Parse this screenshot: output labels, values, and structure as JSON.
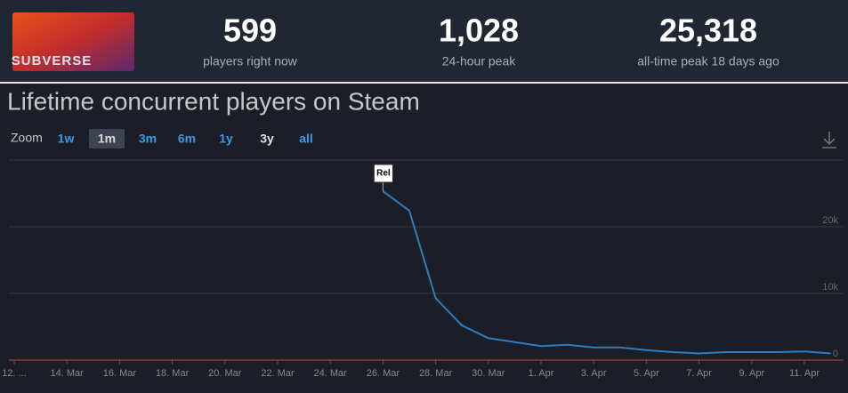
{
  "header": {
    "logo_text": "SUBVERSE",
    "stats": [
      {
        "value": "599",
        "label": "players right now"
      },
      {
        "value": "1,028",
        "label": "24-hour peak"
      },
      {
        "value": "25,318",
        "label": "all-time peak 18 days ago"
      }
    ]
  },
  "chart_data": {
    "type": "line",
    "title": "Lifetime concurrent players on Steam",
    "zoom": {
      "label": "Zoom",
      "options": [
        "1w",
        "1m",
        "3m",
        "6m",
        "1y",
        "3y",
        "all"
      ],
      "active": "1m"
    },
    "categories": [
      "12. ...",
      null,
      "14. Mar",
      null,
      "16. Mar",
      null,
      "18. Mar",
      null,
      "20. Mar",
      null,
      "22. Mar",
      null,
      "24. Mar",
      null,
      "26. Mar",
      null,
      "28. Mar",
      null,
      "30. Mar",
      null,
      "1. Apr",
      null,
      "3. Apr",
      null,
      "5. Apr",
      null,
      "7. Apr",
      null,
      "9. Apr",
      null,
      "11. Apr",
      null
    ],
    "values": [
      null,
      null,
      null,
      null,
      null,
      null,
      null,
      null,
      null,
      null,
      null,
      null,
      null,
      null,
      25318,
      22400,
      9300,
      5200,
      3300,
      2700,
      2100,
      2300,
      1900,
      1900,
      1500,
      1200,
      1000,
      1200,
      1200,
      1200,
      1300,
      1000
    ],
    "color": "#2b7cc0",
    "ylim": [
      0,
      30000
    ],
    "yticks": [
      {
        "value": 0,
        "label": "0"
      },
      {
        "value": 10000,
        "label": "10k"
      },
      {
        "value": 20000,
        "label": "20k"
      }
    ],
    "grid": true,
    "annotations": [
      {
        "label": "Rel",
        "category": "26. Mar"
      }
    ]
  }
}
